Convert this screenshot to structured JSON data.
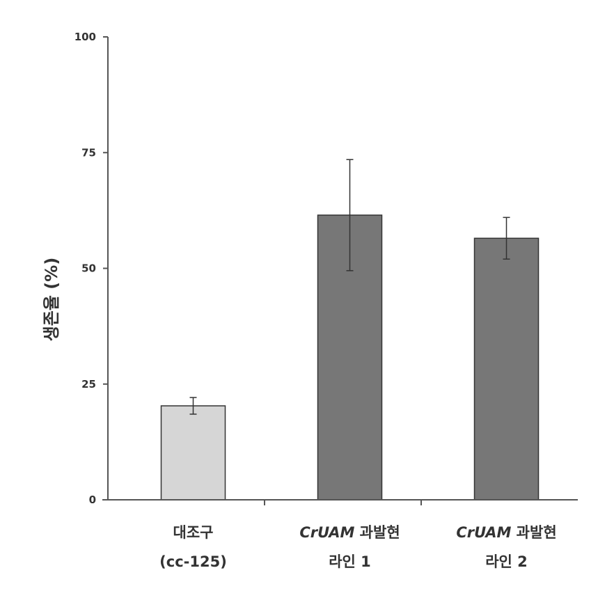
{
  "chart_data": {
    "type": "bar",
    "ylabel": "생존율 (%)",
    "ylim": [
      0,
      100
    ],
    "yticks": [
      "0",
      "25",
      "50",
      "75",
      "100"
    ],
    "categories": [
      {
        "line1_italic": "",
        "line1": "대조구",
        "line2": "(cc-125)"
      },
      {
        "line1_italic": "CrUAM",
        "line1": " 과발현",
        "line2": "라인 1"
      },
      {
        "line1_italic": "CrUAM",
        "line1": " 과발현",
        "line2": "라인 2"
      }
    ],
    "values": [
      20.3,
      61.5,
      56.5
    ],
    "errors": [
      1.8,
      12.0,
      4.5
    ],
    "bar_colors": [
      "#d6d6d6",
      "#777777",
      "#777777"
    ],
    "axis_color": "#555555"
  }
}
